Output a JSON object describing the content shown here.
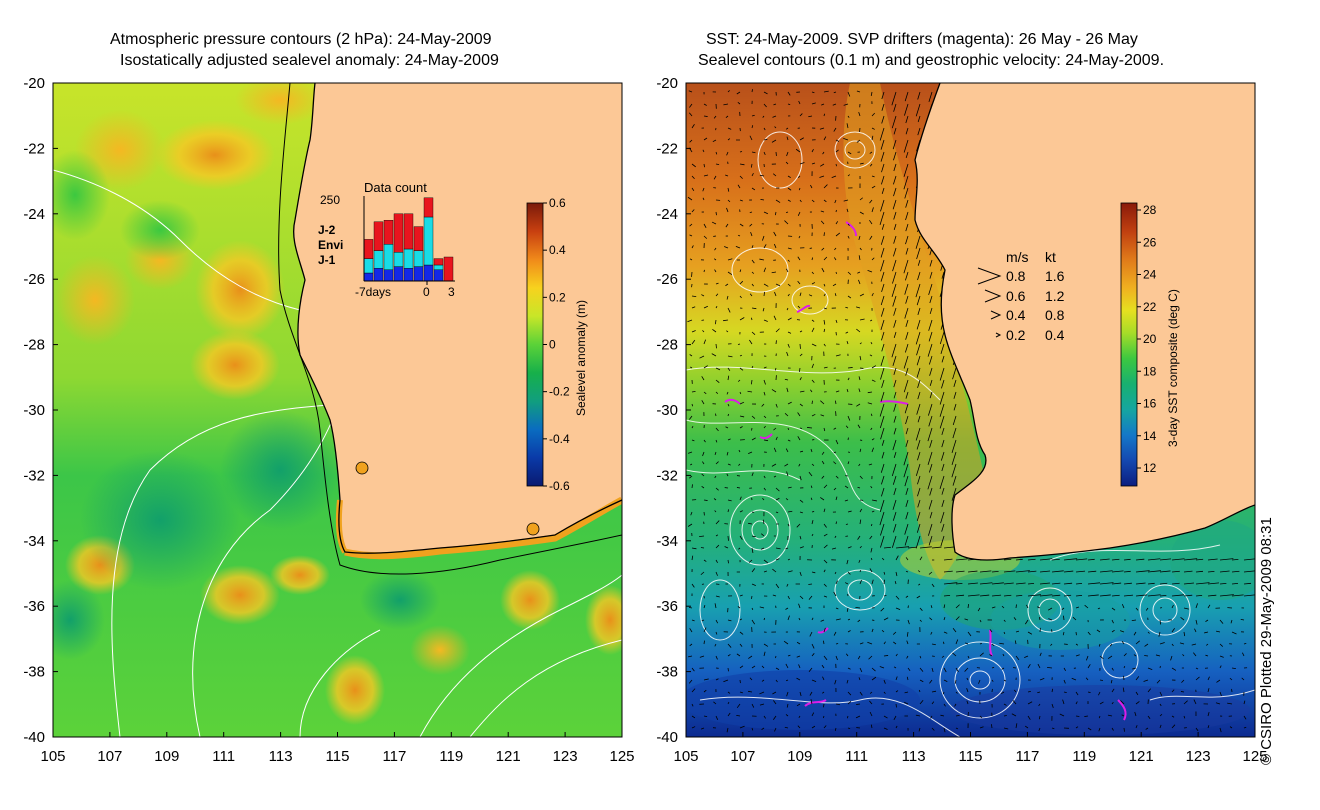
{
  "left_panel": {
    "title_line1": "Atmospheric pressure contours (2 hPa): 24-May-2009",
    "title_line2": "Isostatically adjusted sealevel anomaly: 24-May-2009",
    "colorbar": {
      "label": "Sealevel anomaly (m)",
      "ticks": [
        "0.6",
        "0.4",
        "0.2",
        "0",
        "-0.2",
        "-0.4",
        "-0.6"
      ],
      "colors": [
        "#7a1a0a",
        "#c84010",
        "#f08a1a",
        "#f7d21e",
        "#c8e628",
        "#5bd238",
        "#17b04a",
        "#119e7e",
        "#0a6cc0",
        "#0a3aa8",
        "#0a1a70"
      ]
    },
    "data_count": {
      "title": "Data count",
      "ymax_label": "250",
      "x_labels": [
        "-7days",
        "0",
        "3"
      ],
      "legend": [
        {
          "name": "J-2",
          "color": "#e8141e"
        },
        {
          "name": "Envi",
          "color": "#19dce6"
        },
        {
          "name": "J-1",
          "color": "#1428e6"
        }
      ],
      "bars": [
        {
          "j1": 25,
          "envi": 45,
          "j2": 60
        },
        {
          "j1": 40,
          "envi": 55,
          "j2": 90
        },
        {
          "j1": 35,
          "envi": 80,
          "j2": 75
        },
        {
          "j1": 45,
          "envi": 45,
          "j2": 120
        },
        {
          "j1": 40,
          "envi": 60,
          "j2": 110
        },
        {
          "j1": 45,
          "envi": 50,
          "j2": 75
        },
        {
          "j1": 50,
          "envi": 150,
          "j2": 60
        },
        {
          "j1": 35,
          "envi": 15,
          "j2": 20
        },
        {
          "j1": 0,
          "envi": 0,
          "j2": 75
        }
      ]
    }
  },
  "right_panel": {
    "title_line1": "SST: 24-May-2009. SVP drifters (magenta): 26 May - 26 May",
    "title_line2": "Sealevel contours (0.1 m) and geostrophic velocity: 24-May-2009.",
    "colorbar": {
      "label": "3-day SST composite (deg C)",
      "ticks": [
        "28",
        "26",
        "24",
        "22",
        "20",
        "18",
        "16",
        "14",
        "12"
      ],
      "colors": [
        "#8a1a0a",
        "#c04010",
        "#e07a1a",
        "#f0b020",
        "#e6e020",
        "#a6dc28",
        "#3cc840",
        "#18b070",
        "#16a6a0",
        "#1478c8",
        "#1448b0",
        "#0c1e80"
      ]
    },
    "velocity_legend": {
      "header_ms": "m/s",
      "header_kt": "kt",
      "rows": [
        {
          "ms": "0.8",
          "kt": "1.6"
        },
        {
          "ms": "0.6",
          "kt": "1.2"
        },
        {
          "ms": "0.4",
          "kt": "0.8"
        },
        {
          "ms": "0.2",
          "kt": "0.4"
        }
      ]
    }
  },
  "axes": {
    "x_ticks": [
      "105",
      "107",
      "109",
      "111",
      "113",
      "115",
      "117",
      "119",
      "121",
      "123",
      "125"
    ],
    "y_ticks": [
      "-20",
      "-22",
      "-24",
      "-26",
      "-28",
      "-30",
      "-32",
      "-34",
      "-36",
      "-38",
      "-40"
    ]
  },
  "colors": {
    "land": "#fcc896",
    "coast": "#000000",
    "contour": "#ffffff",
    "drifter": "#dc1ee6"
  },
  "credit": "© CSIRO Plotted 29-May-2009 08:31"
}
